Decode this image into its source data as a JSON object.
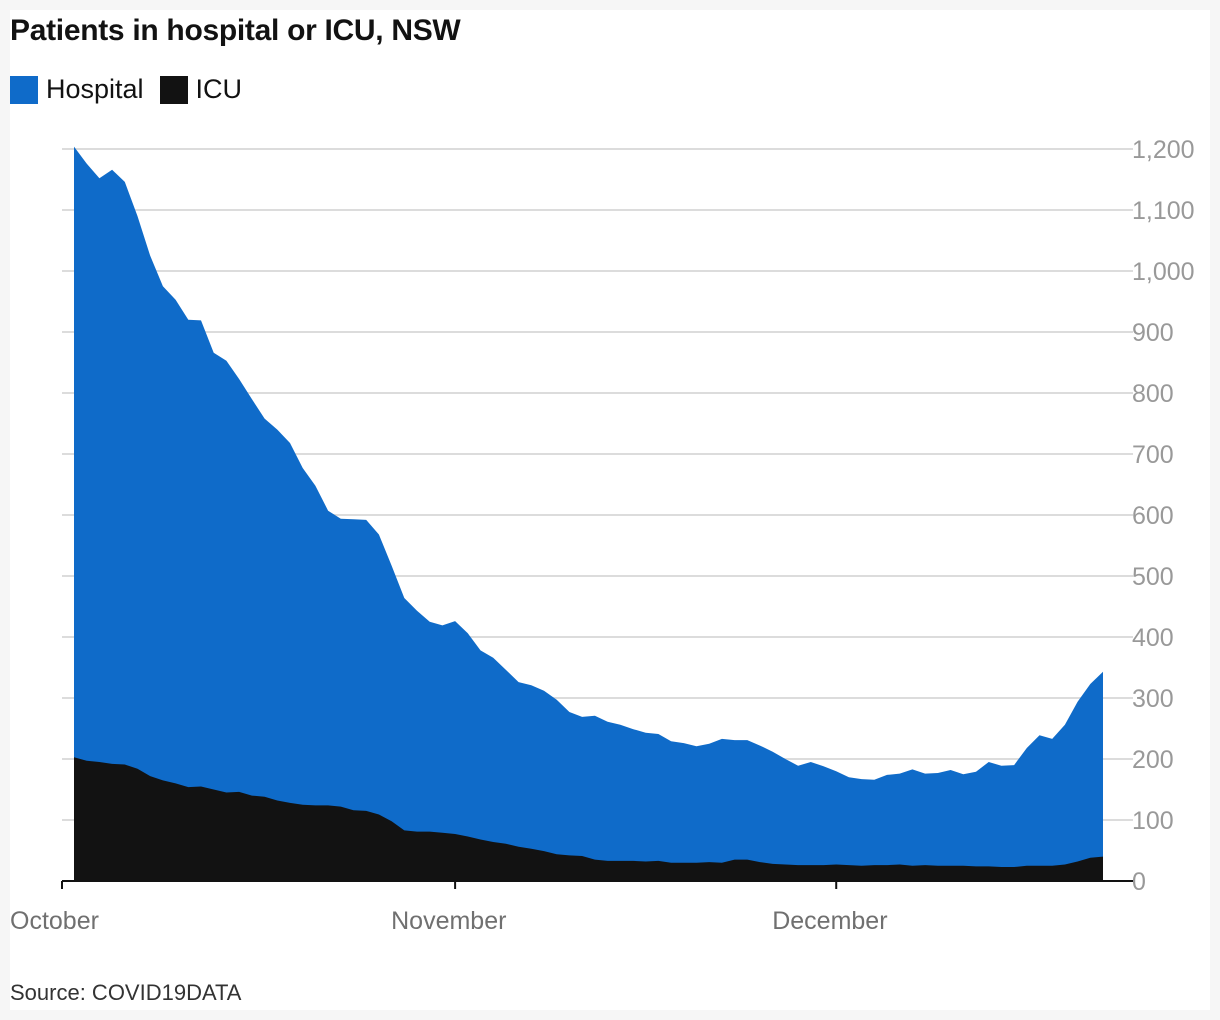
{
  "title": "Patients in hospital or ICU, NSW",
  "source": "Source: COVID19DATA",
  "colors": {
    "hospital": "#0f6bc9",
    "icu": "#121212",
    "grid": "#dcdcdc",
    "axis": "#121212"
  },
  "legend": [
    {
      "label": "Hospital",
      "color": "#0f6bc9"
    },
    {
      "label": "ICU",
      "color": "#121212"
    }
  ],
  "chart_data": {
    "type": "area",
    "x_start": "2021-10-01",
    "x_tick_labels": [
      "October",
      "November",
      "December"
    ],
    "y_ticks": [
      "0",
      "100",
      "200",
      "300",
      "400",
      "500",
      "600",
      "700",
      "800",
      "900",
      "1,000",
      "1,100",
      "1,200"
    ],
    "ylim": [
      0,
      1200
    ],
    "y_axis_side": "right",
    "grid": true,
    "legend_position": "top-left",
    "series": [
      {
        "name": "Hospital",
        "values": [
          1204,
          1176,
          1152,
          1166,
          1146,
          1090,
          1025,
          975,
          953,
          920,
          919,
          866,
          853,
          823,
          790,
          758,
          740,
          718,
          677,
          648,
          607,
          594,
          593,
          592,
          568,
          517,
          464,
          443,
          425,
          419,
          426,
          406,
          378,
          366,
          346,
          326,
          321,
          312,
          297,
          277,
          269,
          271,
          261,
          256,
          249,
          243,
          241,
          229,
          226,
          221,
          225,
          233,
          231,
          231,
          222,
          212,
          200,
          189,
          195,
          188,
          180,
          170,
          167,
          166,
          174,
          176,
          183,
          176,
          177,
          182,
          175,
          179,
          195,
          189,
          190,
          218,
          239,
          233,
          256,
          294,
          323,
          343
        ]
      },
      {
        "name": "ICU",
        "values": [
          203,
          197,
          195,
          192,
          191,
          184,
          172,
          165,
          160,
          154,
          155,
          150,
          145,
          146,
          140,
          138,
          132,
          128,
          125,
          124,
          124,
          122,
          116,
          115,
          109,
          98,
          83,
          81,
          81,
          79,
          77,
          73,
          68,
          64,
          61,
          56,
          53,
          49,
          44,
          42,
          41,
          35,
          33,
          33,
          33,
          32,
          33,
          30,
          30,
          30,
          31,
          30,
          35,
          35,
          31,
          28,
          27,
          26,
          26,
          26,
          27,
          26,
          25,
          26,
          26,
          27,
          25,
          26,
          25,
          25,
          25,
          24,
          24,
          23,
          23,
          25,
          25,
          25,
          27,
          32,
          38,
          40
        ]
      }
    ]
  }
}
